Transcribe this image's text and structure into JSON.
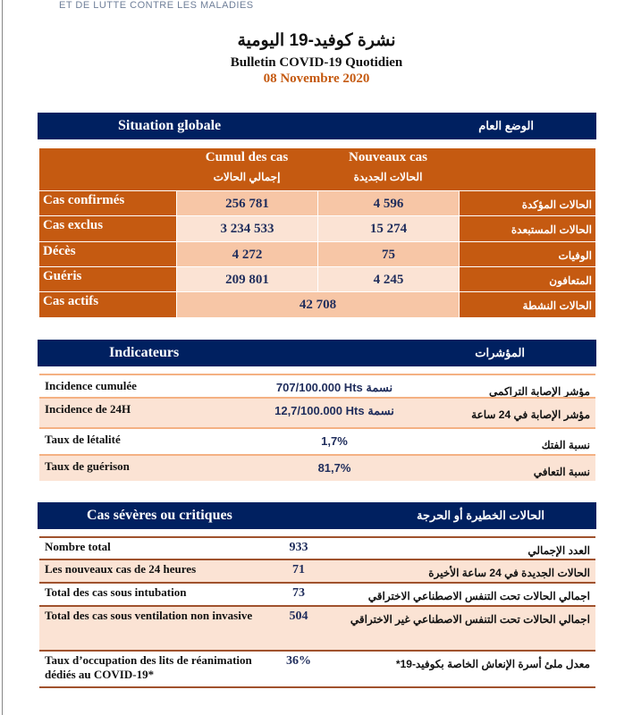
{
  "header": {
    "cut_text": "ET DE LUTTE CONTRE LES MALADIES",
    "title_ar": "نشرة كوفيد-19 اليومية",
    "title_fr": "Bulletin COVID-19 Quotidien",
    "date": "08 Novembre 2020"
  },
  "situation": {
    "title_fr": "Situation globale",
    "title_ar": "الوضع العام",
    "col_cumul_fr": "Cumul des cas",
    "col_cumul_ar": "إجمالي الحالات",
    "col_new_fr": "Nouveaux cas",
    "col_new_ar": "الحالات الجديدة",
    "rows": [
      {
        "fr": "Cas confirmés",
        "cumul": "256 781",
        "new": "4 596",
        "ar": "الحالات المؤكدة"
      },
      {
        "fr": "Cas exclus",
        "cumul": "3 234 533",
        "new": "15 274",
        "ar": "الحالات المستبعدة"
      },
      {
        "fr": "Décès",
        "cumul": "4 272",
        "new": "75",
        "ar": "الوفيات"
      },
      {
        "fr": "Guéris",
        "cumul": "209 801",
        "new": "4 245",
        "ar": "المتعافون"
      }
    ],
    "active": {
      "fr": "Cas actifs",
      "value": "42 708",
      "ar": "الحالات النشطة"
    }
  },
  "indicateurs": {
    "title_fr": "Indicateurs",
    "title_ar": "المؤشرات",
    "rows": [
      {
        "fr": "Incidence cumulée",
        "value": "707/100.000 Hts نسمة",
        "ar": "مؤشر الإصابة التراكمي"
      },
      {
        "fr": "Incidence de 24H",
        "value": "12,7/100.000 Hts نسمة",
        "ar": "مؤشر الإصابة في 24 ساعة"
      },
      {
        "fr": "Taux de létalité",
        "value": "1,7%",
        "ar": "نسبة الفتك"
      },
      {
        "fr": "Taux de guérison",
        "value": "81,7%",
        "ar": "نسبة التعافي"
      }
    ]
  },
  "severes": {
    "title_fr": "Cas sévères ou critiques",
    "title_ar": "الحالات الخطيرة أو الحرجة",
    "rows": [
      {
        "fr": "Nombre total",
        "value": "933",
        "ar": "العدد الإجمالي"
      },
      {
        "fr": "Les nouveaux cas de 24 heures",
        "value": "71",
        "ar": "الحالات الجديدة في 24 ساعة الأخيرة"
      },
      {
        "fr": "Total des cas sous intubation",
        "value": "73",
        "ar": "اجمالي الحالات تحت التنفس الاصطناعي الاختراقي"
      },
      {
        "fr": "Total des cas sous ventilation non invasive",
        "value": "504",
        "ar": "اجمالي الحالات تحت التنفس الاصطناعي غير الاختراقي"
      },
      {
        "fr": "Taux d’occupation des lits de réanimation dédiés au COVID-19*",
        "value": "36%",
        "ar": "معدل ملئ أسرة الإنعاش الخاصة بكوفيد-19*"
      }
    ]
  },
  "colors": {
    "navy": "#002060",
    "orange": "#c55a11",
    "peach": "#f7c6a6",
    "light_peach": "#fbe3d4"
  }
}
